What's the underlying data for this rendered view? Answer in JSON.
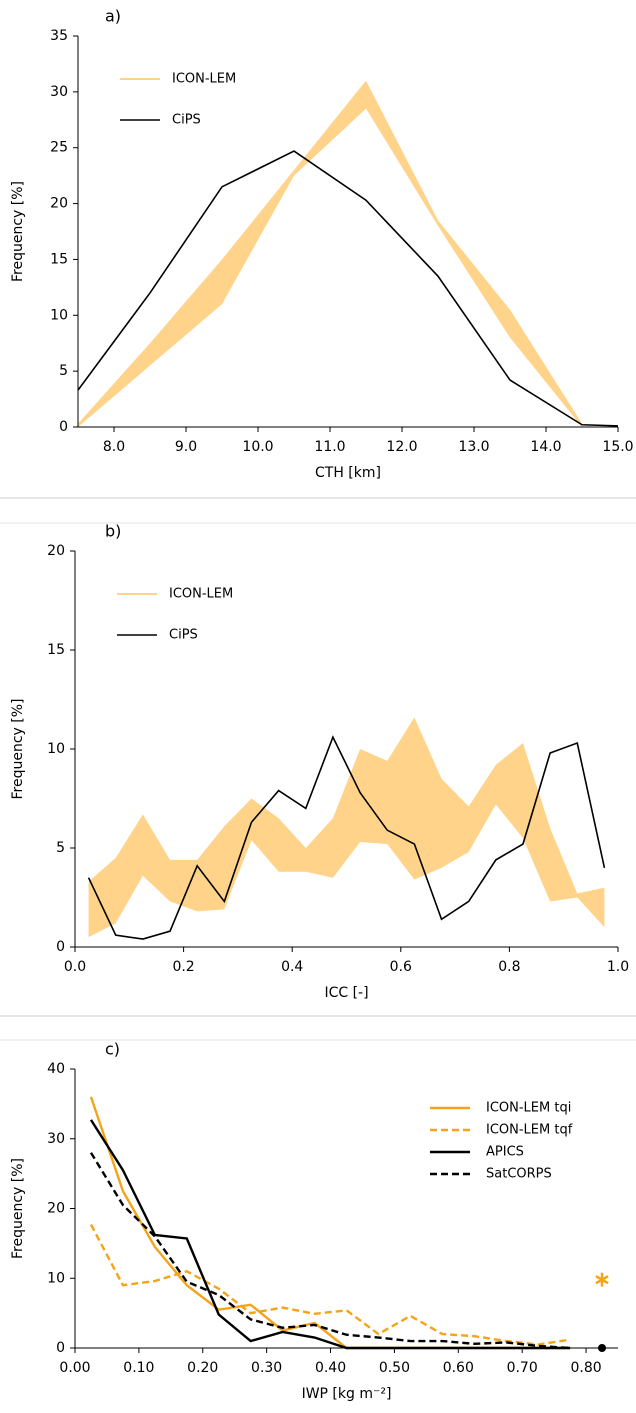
{
  "chart_data": [
    {
      "type": "line",
      "title": "a)",
      "xlabel": "CTH [km]",
      "ylabel": "Frequency [%]",
      "xlim": [
        7.5,
        15.0
      ],
      "xticks": [
        {
          "value": 8,
          "label": "8.0"
        },
        {
          "value": 9,
          "label": "9.0"
        },
        {
          "value": 10,
          "label": "10.0"
        },
        {
          "value": 11,
          "label": "11.0"
        },
        {
          "value": 12,
          "label": "12.0"
        },
        {
          "value": 13,
          "label": "13.0"
        },
        {
          "value": 14,
          "label": "14.0"
        },
        {
          "value": 15,
          "label": "15.0"
        }
      ],
      "ylim": [
        0,
        35
      ],
      "yticks": [
        0,
        5,
        10,
        15,
        20,
        25,
        30,
        35
      ],
      "legend": "upper left",
      "series": [
        {
          "name": "ICON-LEM",
          "color": "#ffd38a",
          "kind": "band",
          "x": [
            7.5,
            8.5,
            9.5,
            10.5,
            11.5,
            12.5,
            13.5,
            14.5
          ],
          "lower": [
            0,
            5.5,
            11,
            22.5,
            28.5,
            18,
            8,
            0
          ],
          "upper": [
            0.3,
            7.5,
            15,
            23,
            31,
            18.5,
            10.5,
            0.3
          ]
        },
        {
          "name": "CiPS",
          "color": "#000000",
          "x": [
            7.5,
            8.5,
            9.5,
            10.5,
            11.5,
            12.5,
            13.5,
            14.5,
            15.0
          ],
          "values": [
            3.3,
            12,
            21.5,
            24.7,
            20.3,
            13.5,
            4.2,
            0.2,
            0.1
          ]
        }
      ]
    },
    {
      "type": "line",
      "title": "b)",
      "xlabel": "ICC [-]",
      "ylabel": "Frequency [%]",
      "xlim": [
        0,
        1
      ],
      "xticks": [
        {
          "value": 0,
          "label": "0.0"
        },
        0.2,
        0.4,
        0.6,
        0.8,
        {
          "value": 1,
          "label": "1.0"
        }
      ],
      "ylim": [
        0,
        20
      ],
      "yticks": [
        0,
        5,
        10,
        15,
        20
      ],
      "legend": "upper left",
      "series": [
        {
          "name": "ICON-LEM",
          "color": "#ffd38a",
          "kind": "band",
          "x": [
            0.025,
            0.075,
            0.125,
            0.175,
            0.225,
            0.275,
            0.325,
            0.375,
            0.425,
            0.475,
            0.525,
            0.575,
            0.625,
            0.675,
            0.725,
            0.775,
            0.825,
            0.875,
            0.925,
            0.975
          ],
          "lower": [
            0.5,
            1.2,
            3.6,
            2.3,
            1.8,
            1.9,
            5.4,
            3.8,
            3.8,
            3.5,
            5.3,
            5.2,
            3.4,
            4.0,
            4.8,
            7.2,
            5.5,
            2.3,
            2.5,
            1.0
          ],
          "upper": [
            3.3,
            4.5,
            6.7,
            4.4,
            4.4,
            6.1,
            7.5,
            6.5,
            5.0,
            6.5,
            10.0,
            9.4,
            11.6,
            8.5,
            7.1,
            9.2,
            10.3,
            6.0,
            2.7,
            3.0
          ]
        },
        {
          "name": "CiPS",
          "color": "#000000",
          "x": [
            0.025,
            0.075,
            0.125,
            0.175,
            0.225,
            0.275,
            0.325,
            0.375,
            0.425,
            0.475,
            0.525,
            0.575,
            0.625,
            0.675,
            0.725,
            0.775,
            0.825,
            0.875,
            0.925,
            0.975
          ],
          "values": [
            3.5,
            0.6,
            0.4,
            0.8,
            4.1,
            2.3,
            6.3,
            7.9,
            7.0,
            10.6,
            7.8,
            5.9,
            5.2,
            1.4,
            2.3,
            4.4,
            5.2,
            9.8,
            10.3,
            4.0
          ]
        }
      ]
    },
    {
      "type": "line",
      "title": "c)",
      "xlabel": "IWP [kg m⁻²]",
      "ylabel": "Frequency [%]",
      "xlim": [
        0,
        0.85
      ],
      "xticks": [
        {
          "value": 0,
          "label": "0.00"
        },
        {
          "value": 0.1,
          "label": "0.10"
        },
        {
          "value": 0.2,
          "label": "0.20"
        },
        {
          "value": 0.3,
          "label": "0.30"
        },
        {
          "value": 0.4,
          "label": "0.40"
        },
        {
          "value": 0.5,
          "label": "0.50"
        },
        {
          "value": 0.6,
          "label": "0.60"
        },
        {
          "value": 0.7,
          "label": "0.70"
        },
        {
          "value": 0.8,
          "label": "0.80"
        }
      ],
      "ylim": [
        0,
        40
      ],
      "yticks": [
        0,
        10,
        20,
        30,
        40
      ],
      "legend": "upper right",
      "series": [
        {
          "name": "ICON-LEM tqi",
          "color": "#f5a31a",
          "x": [
            0.025,
            0.075,
            0.125,
            0.175,
            0.225,
            0.275,
            0.325,
            0.375,
            0.425,
            0.475,
            0.525,
            0.575,
            0.625,
            0.675,
            0.725,
            0.775
          ],
          "values": [
            36,
            22.5,
            14.5,
            9,
            5.5,
            6.2,
            2.5,
            3.6,
            0,
            0,
            0,
            0,
            0,
            0,
            0,
            0
          ]
        },
        {
          "name": "ICON-LEM tqf",
          "color": "#f5a31a",
          "dash": true,
          "x": [
            0.025,
            0.075,
            0.125,
            0.175,
            0.225,
            0.275,
            0.325,
            0.375,
            0.425,
            0.475,
            0.525,
            0.575,
            0.625,
            0.675,
            0.725,
            0.775
          ],
          "values": [
            17.7,
            9,
            9.6,
            11,
            8.5,
            5,
            5.8,
            4.9,
            5.4,
            2,
            4.6,
            2,
            1.7,
            1,
            0.5,
            1.2
          ]
        },
        {
          "name": "APICS",
          "color": "#000000",
          "x": [
            0.025,
            0.075,
            0.125,
            0.175,
            0.225,
            0.275,
            0.325,
            0.375,
            0.425,
            0.475,
            0.525,
            0.575,
            0.625,
            0.675,
            0.725,
            0.775
          ],
          "values": [
            32.7,
            25.5,
            16.2,
            15.7,
            4.8,
            1,
            2.3,
            1.5,
            0,
            0,
            0,
            0,
            0,
            0,
            0,
            0
          ]
        },
        {
          "name": "SatCORPS",
          "color": "#000000",
          "dash": true,
          "x": [
            0.025,
            0.075,
            0.125,
            0.175,
            0.225,
            0.275,
            0.325,
            0.375,
            0.425,
            0.475,
            0.525,
            0.575,
            0.625,
            0.675,
            0.725,
            0.775
          ],
          "values": [
            28,
            20.5,
            16,
            9.5,
            7.6,
            4.1,
            2.9,
            3.3,
            1.9,
            1.5,
            1,
            1,
            0.6,
            0.8,
            0.3,
            0
          ]
        }
      ],
      "points": [
        {
          "x": 0.825,
          "y": 9.8,
          "color": "#f5a31a",
          "marker": "asterisk"
        },
        {
          "x": 0.825,
          "y": 0,
          "color": "#000000",
          "marker": "dot"
        }
      ]
    }
  ]
}
